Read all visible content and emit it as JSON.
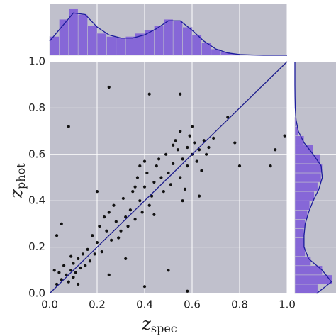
{
  "chart_data": [
    {
      "type": "scatter",
      "x": [
        0.05,
        0.07,
        0.09,
        0.11,
        0.06,
        0.1,
        0.13,
        0.08,
        0.12,
        0.15,
        0.04,
        0.1,
        0.14,
        0.17,
        0.03,
        0.16,
        0.09,
        0.19,
        0.02,
        0.12,
        0.2,
        0.22,
        0.24,
        0.21,
        0.26,
        0.28,
        0.25,
        0.3,
        0.27,
        0.32,
        0.29,
        0.31,
        0.34,
        0.33,
        0.23,
        0.18,
        0.35,
        0.36,
        0.38,
        0.4,
        0.37,
        0.42,
        0.41,
        0.44,
        0.39,
        0.45,
        0.43,
        0.47,
        0.46,
        0.48,
        0.4,
        0.5,
        0.49,
        0.44,
        0.36,
        0.38,
        0.52,
        0.54,
        0.55,
        0.53,
        0.56,
        0.58,
        0.57,
        0.6,
        0.59,
        0.62,
        0.61,
        0.51,
        0.55,
        0.63,
        0.65,
        0.64,
        0.66,
        0.58,
        0.52,
        0.6,
        0.67,
        0.69,
        0.56,
        0.63,
        0.25,
        0.08,
        0.42,
        0.55,
        0.93,
        0.95,
        0.99,
        0.78,
        0.8,
        0.4,
        0.25,
        0.03,
        0.05,
        0.2,
        0.75,
        0.32,
        0.58,
        0.5
      ],
      "y": [
        0.06,
        0.08,
        0.1,
        0.09,
        0.12,
        0.13,
        0.11,
        0.05,
        0.15,
        0.12,
        0.09,
        0.07,
        0.17,
        0.14,
        0.04,
        0.19,
        0.16,
        0.17,
        0.1,
        0.04,
        0.22,
        0.18,
        0.27,
        0.29,
        0.23,
        0.31,
        0.35,
        0.27,
        0.38,
        0.33,
        0.24,
        0.41,
        0.36,
        0.29,
        0.33,
        0.25,
        0.44,
        0.32,
        0.4,
        0.46,
        0.5,
        0.38,
        0.52,
        0.48,
        0.35,
        0.55,
        0.42,
        0.5,
        0.58,
        0.44,
        0.57,
        0.52,
        0.6,
        0.34,
        0.46,
        0.55,
        0.56,
        0.62,
        0.5,
        0.66,
        0.58,
        0.63,
        0.45,
        0.6,
        0.68,
        0.57,
        0.65,
        0.47,
        0.7,
        0.62,
        0.66,
        0.53,
        0.6,
        0.55,
        0.64,
        0.72,
        0.63,
        0.67,
        0.4,
        0.42,
        0.89,
        0.72,
        0.86,
        0.86,
        0.55,
        0.62,
        0.68,
        0.65,
        0.55,
        0.03,
        0.08,
        0.25,
        0.3,
        0.44,
        0.76,
        0.15,
        0.01,
        0.1
      ],
      "color": "#111111",
      "line": {
        "x": [
          0,
          1
        ],
        "values": [
          0,
          1
        ],
        "color": "#1c1c8c"
      },
      "xlim": [
        0,
        1
      ],
      "ylim": [
        0,
        1
      ],
      "xticks": [
        {
          "value": 0,
          "label": "0.0"
        },
        {
          "value": 0.2,
          "label": "0.2"
        },
        {
          "value": 0.4,
          "label": "0.4"
        },
        {
          "value": 0.6,
          "label": "0.6"
        },
        {
          "value": 0.8,
          "label": "0.8"
        },
        {
          "value": 1,
          "label": "1.0"
        }
      ],
      "yticks": [
        {
          "value": 0,
          "label": "0.0"
        },
        {
          "value": 0.2,
          "label": "0.2"
        },
        {
          "value": 0.4,
          "label": "0.4"
        },
        {
          "value": 0.6,
          "label": "0.6"
        },
        {
          "value": 0.8,
          "label": "0.8"
        },
        {
          "value": 1,
          "label": "1.0"
        }
      ],
      "xlabel": {
        "main": "z",
        "sub": "spec"
      },
      "ylabel": {
        "main": "z",
        "sub": "phot"
      },
      "grid": true
    },
    {
      "type": "histogram",
      "orientation": "vertical",
      "bins": [
        0,
        0.04,
        0.08,
        0.12,
        0.16,
        0.2,
        0.24,
        0.28,
        0.32,
        0.36,
        0.4,
        0.44,
        0.48,
        0.52,
        0.56,
        0.6,
        0.64,
        0.68,
        0.72,
        0.76,
        0.8,
        0.84
      ],
      "values": [
        1.2,
        2.3,
        3.0,
        2.6,
        1.9,
        1.4,
        1.2,
        1.1,
        1.2,
        1.4,
        1.6,
        1.9,
        2.3,
        2.2,
        1.8,
        1.3,
        0.8,
        0.4,
        0.2,
        0.1,
        0.05
      ],
      "color": "#7b57d8",
      "lim": [
        0,
        3.3
      ],
      "kde": {
        "positions": [
          0,
          0.05,
          0.1,
          0.15,
          0.2,
          0.25,
          0.3,
          0.35,
          0.4,
          0.45,
          0.5,
          0.55,
          0.6,
          0.65,
          0.7,
          0.75,
          0.8,
          0.85,
          0.9,
          0.95,
          1
        ],
        "values": [
          0.9,
          1.8,
          2.7,
          2.6,
          1.8,
          1.3,
          1.1,
          1.1,
          1.3,
          1.7,
          2.2,
          2.2,
          1.6,
          0.9,
          0.4,
          0.15,
          0.05,
          0.02,
          0,
          0,
          0
        ],
        "color": "#1c1c9c"
      }
    },
    {
      "type": "histogram",
      "orientation": "horizontal",
      "bins": [
        0,
        0.04,
        0.08,
        0.12,
        0.16,
        0.2,
        0.24,
        0.28,
        0.32,
        0.36,
        0.4,
        0.44,
        0.48,
        0.52,
        0.56,
        0.6,
        0.64,
        0.68,
        0.72,
        0.76
      ],
      "values": [
        2.0,
        3.3,
        2.4,
        1.4,
        0.9,
        0.8,
        0.8,
        0.9,
        1.1,
        1.3,
        1.7,
        2.0,
        2.3,
        2.4,
        2.2,
        1.6,
        0.8,
        0.3,
        0.1
      ],
      "color": "#7b57d8",
      "lim": [
        0,
        3.6
      ],
      "kde": {
        "positions": [
          0,
          0.05,
          0.1,
          0.15,
          0.2,
          0.25,
          0.3,
          0.35,
          0.4,
          0.45,
          0.5,
          0.55,
          0.6,
          0.65,
          0.7,
          0.75,
          0.8,
          0.85,
          0.9,
          0.95,
          1
        ],
        "values": [
          1.9,
          3.2,
          2.4,
          1.2,
          0.8,
          0.8,
          0.9,
          1.2,
          1.6,
          2.1,
          2.4,
          2.3,
          1.6,
          0.8,
          0.3,
          0.1,
          0.03,
          0.01,
          0,
          0,
          0
        ],
        "color": "#1c1c9c"
      }
    }
  ]
}
